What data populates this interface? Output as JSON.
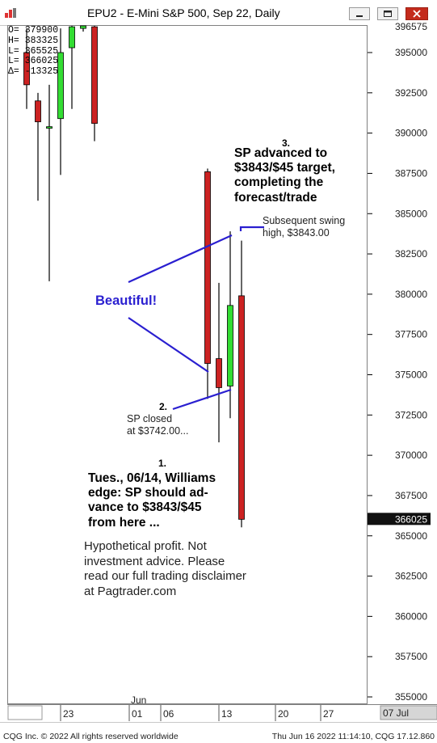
{
  "window": {
    "title": "EPU2 - E-Mini S&P 500, Sep 22, Daily"
  },
  "info_box": [
    {
      "label": "O=",
      "value": "379900"
    },
    {
      "label": "H=",
      "value": "383325"
    },
    {
      "label": "L=",
      "value": "365525"
    },
    {
      "label": "L=",
      "value": "366025"
    },
    {
      "label": "Δ=",
      "value": "-13325"
    }
  ],
  "annotations": {
    "note1_number": "1.",
    "note1_lines": [
      "Tues., 06/14, Williams",
      "edge: SP should ad-",
      "vance to $3843/$45",
      "from here ..."
    ],
    "note2_number": "2.",
    "note2_lines": [
      "SP closed",
      "at $3742.00..."
    ],
    "note3_number": "3.",
    "note3_lines": [
      "SP advanced to",
      "$3843/$45 target,",
      "completing the",
      "forecast/trade"
    ],
    "swing_lines": [
      "Subsequent swing",
      "high, $3843.00"
    ],
    "beautiful": "Beautiful!",
    "disclaimer_lines": [
      "Hypothetical profit. Not",
      "investment advice. Please",
      "read our full trading disclaimer",
      "at Pagtrader.com"
    ]
  },
  "footer": {
    "copyright": "CQG Inc. © 2022 All rights reserved worldwide",
    "timestamp": "Thu Jun 16 2022 11:14:10, CQG 17.12.860"
  },
  "colors": {
    "up": "#33dd33",
    "down": "#cc2222",
    "annotation": "#2a1fd0",
    "wick": "#000000"
  },
  "chart_data": {
    "type": "candlestick",
    "title": "EPU2 - E-Mini S&P 500, Sep 22, Daily",
    "ylim": [
      354000,
      397000
    ],
    "y_ticks": [
      "395000",
      "392500",
      "390000",
      "387500",
      "385000",
      "382500",
      "380000",
      "377500",
      "375000",
      "372500",
      "370000",
      "367500",
      "365000",
      "362500",
      "360000",
      "357500",
      "355000"
    ],
    "top_price_label": "396575",
    "current_price_label": "366025",
    "x_tick_labels": [
      "23",
      "01",
      "06",
      "13",
      "20",
      "27",
      "07 Jul"
    ],
    "month_label": "Jun",
    "candles": [
      {
        "open": 395000,
        "high": 396500,
        "low": 391500,
        "close": 393000
      },
      {
        "open": 392000,
        "high": 392500,
        "low": 385800,
        "close": 390700
      },
      {
        "open": 390400,
        "high": 393000,
        "low": 380800,
        "close": 390400
      },
      {
        "open": 390900,
        "high": 396500,
        "low": 387400,
        "close": 395000
      },
      {
        "open": 395300,
        "high": 397000,
        "low": 391500,
        "close": 396600
      },
      {
        "open": 396500,
        "high": 397000,
        "low": 396300,
        "close": 396700
      },
      {
        "open": 396600,
        "high": 397000,
        "low": 389500,
        "close": 390600
      },
      {
        "open": 387600,
        "high": 387800,
        "low": 373500,
        "close": 375700
      },
      {
        "open": 376000,
        "high": 380700,
        "low": 370800,
        "close": 374200
      },
      {
        "open": 374300,
        "high": 383900,
        "low": 372300,
        "close": 379300
      },
      {
        "open": 379900,
        "high": 383325,
        "low": 365525,
        "close": 366025
      }
    ]
  }
}
